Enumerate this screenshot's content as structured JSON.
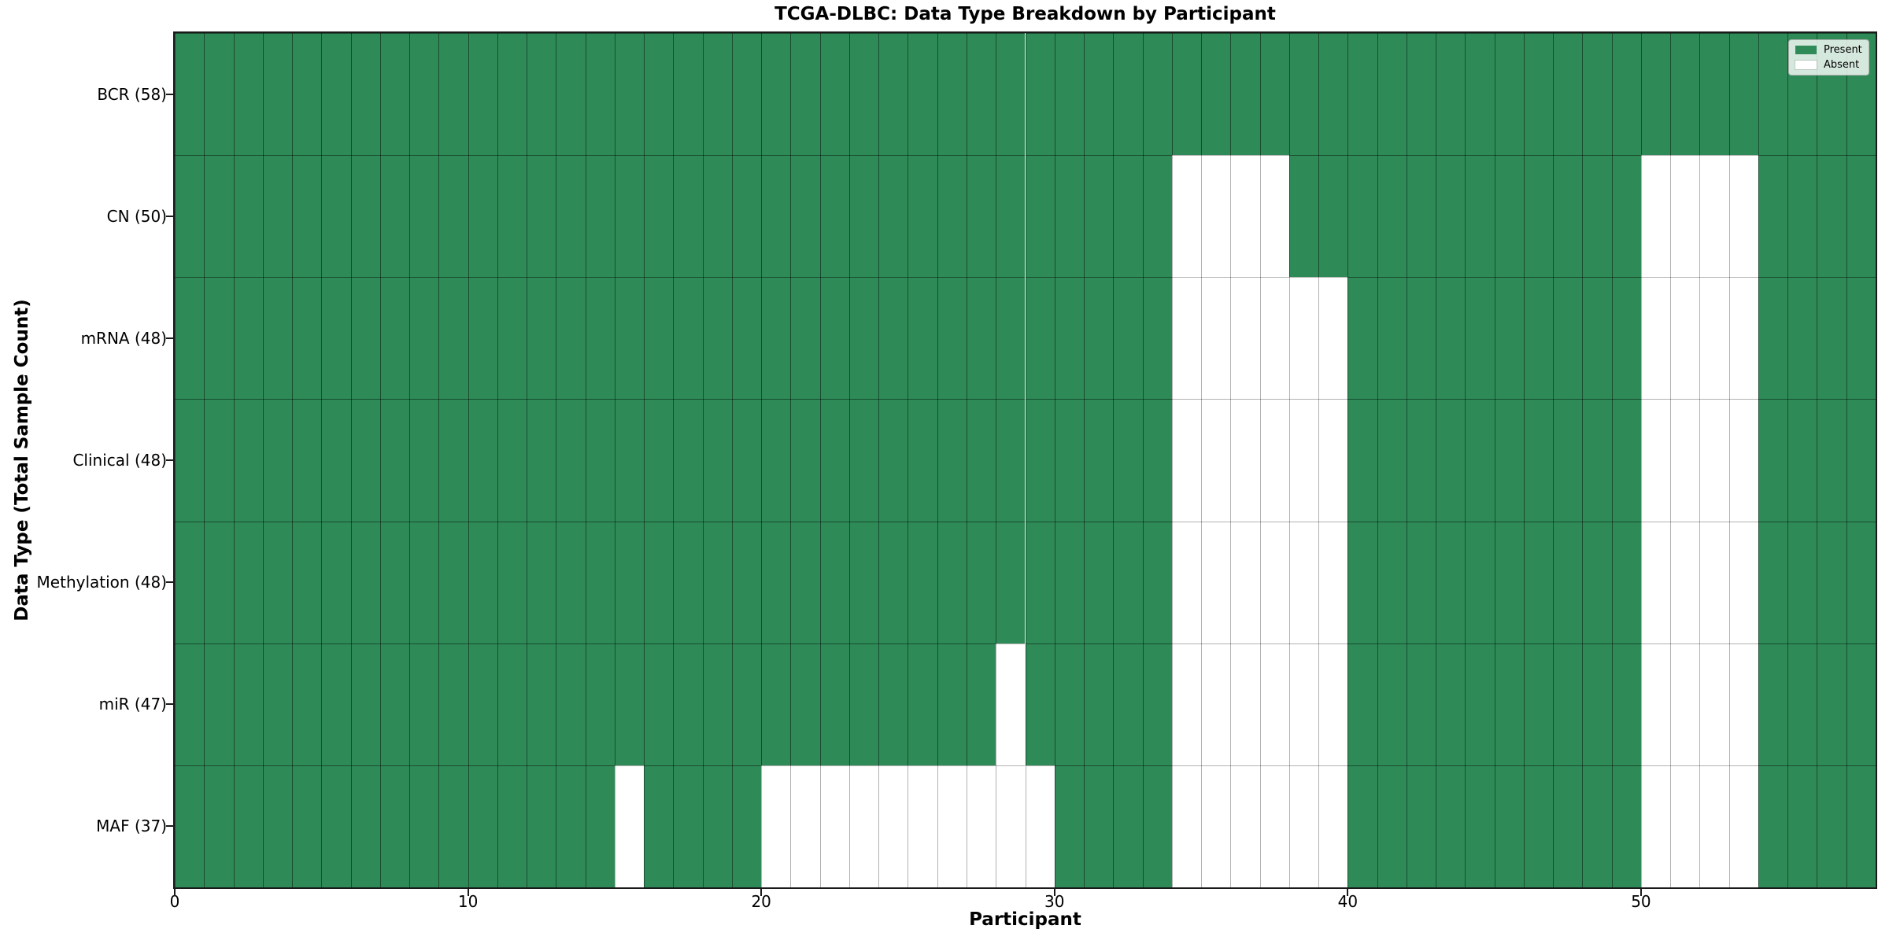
{
  "chart_data": {
    "type": "heatmap",
    "title": "TCGA-DLBC: Data Type Breakdown by Participant",
    "xlabel": "Participant",
    "ylabel": "Data Type (Total Sample Count)",
    "x_ticks": [
      0,
      10,
      20,
      30,
      40,
      50
    ],
    "x_range": [
      0,
      58
    ],
    "n_participants": 58,
    "grid": true,
    "legend_position": "upper right",
    "legend": [
      {
        "label": "Present",
        "color": "#2e8b57"
      },
      {
        "label": "Absent",
        "color": "#ffffff"
      }
    ],
    "colors": {
      "present": "#2e8b57",
      "absent": "#ffffff",
      "cell_edge": "#000000",
      "spine": "#1a1a1a",
      "legend_border": "#b0b0b0"
    },
    "rows": [
      {
        "label": "BCR (58)",
        "name": "BCR",
        "present_count": 58,
        "absent_participants": []
      },
      {
        "label": "CN (50)",
        "name": "CN",
        "present_count": 50,
        "absent_participants": [
          34,
          35,
          36,
          37,
          50,
          51,
          52,
          53
        ]
      },
      {
        "label": "mRNA (48)",
        "name": "mRNA",
        "present_count": 48,
        "absent_participants": [
          34,
          35,
          36,
          37,
          38,
          39,
          50,
          51,
          52,
          53
        ]
      },
      {
        "label": "Clinical (48)",
        "name": "Clinical",
        "present_count": 48,
        "absent_participants": [
          34,
          35,
          36,
          37,
          38,
          39,
          50,
          51,
          52,
          53
        ]
      },
      {
        "label": "Methylation (48)",
        "name": "Methylation",
        "present_count": 48,
        "absent_participants": [
          34,
          35,
          36,
          37,
          38,
          39,
          50,
          51,
          52,
          53
        ]
      },
      {
        "label": "miR (47)",
        "name": "miR",
        "present_count": 47,
        "absent_participants": [
          28,
          34,
          35,
          36,
          37,
          38,
          39,
          50,
          51,
          52,
          53
        ]
      },
      {
        "label": "MAF (37)",
        "name": "MAF",
        "present_count": 37,
        "absent_participants": [
          15,
          20,
          21,
          22,
          23,
          24,
          25,
          26,
          27,
          28,
          29,
          34,
          35,
          36,
          37,
          38,
          39,
          50,
          51,
          52,
          53
        ]
      }
    ]
  }
}
